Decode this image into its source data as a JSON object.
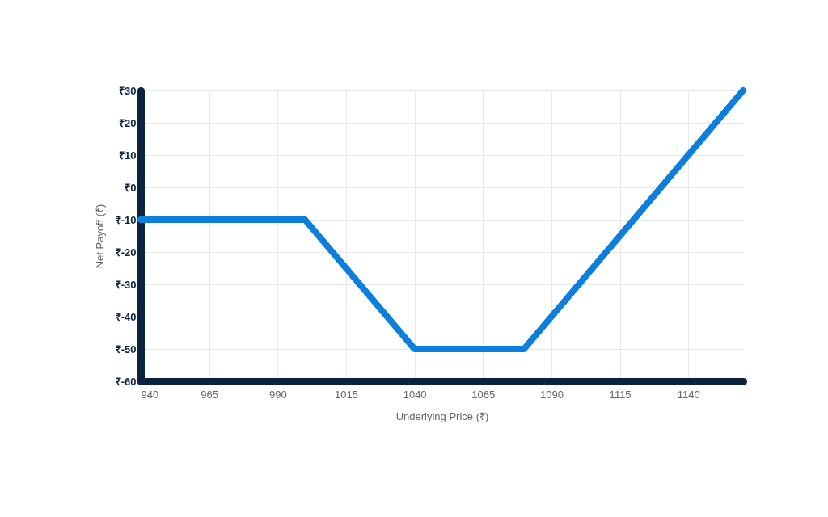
{
  "chart_data": {
    "type": "line",
    "xlabel": "Underlying Price (₹)",
    "ylabel": "Net Payoff (₹)",
    "x": [
      940,
      1000,
      1040,
      1080,
      1160
    ],
    "series": [
      {
        "color": "#0b7fdb",
        "values": [
          -10,
          -10,
          -50,
          -50,
          30
        ]
      }
    ],
    "xlim": [
      940,
      1160
    ],
    "xticks": [
      940,
      965,
      990,
      1015,
      1040,
      1065,
      1090,
      1115,
      1140
    ],
    "ylim": [
      -60,
      30
    ],
    "yticks": [
      {
        "value": 30,
        "label": "₹30"
      },
      {
        "value": 20,
        "label": "₹20"
      },
      {
        "value": 10,
        "label": "₹10"
      },
      {
        "value": 0,
        "label": "₹0"
      },
      {
        "value": -10,
        "label": "₹-10"
      },
      {
        "value": -20,
        "label": "₹-20"
      },
      {
        "value": -30,
        "label": "₹-30"
      },
      {
        "value": -40,
        "label": "₹-40"
      },
      {
        "value": -50,
        "label": "₹-50"
      },
      {
        "value": -60,
        "label": "₹-60"
      }
    ],
    "grid": true,
    "marker": "none",
    "line_style": "solid"
  }
}
